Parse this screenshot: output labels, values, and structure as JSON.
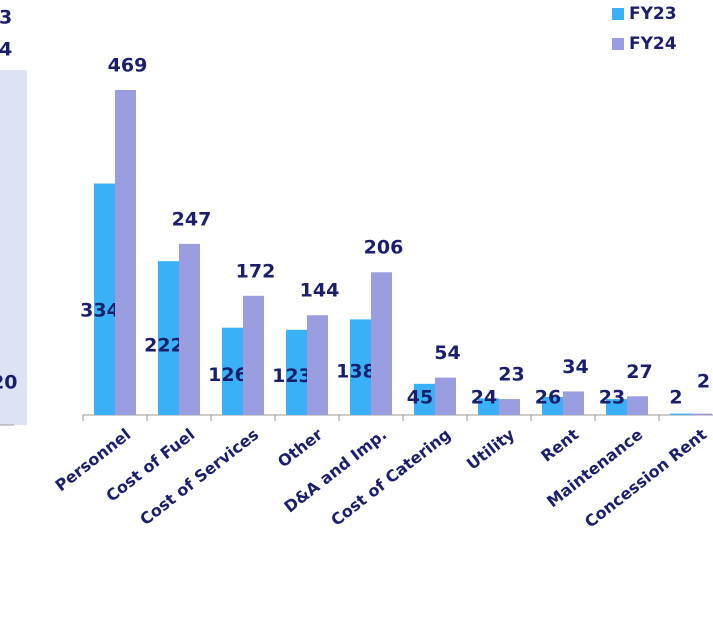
{
  "chart_data": {
    "type": "bar",
    "categories": [
      "Personnel",
      "Cost of Fuel",
      "Cost of Services",
      "Other",
      "D&A and Imp.",
      "Cost of Catering",
      "Utility",
      "Rent",
      "Maintenance",
      "Concession Rent"
    ],
    "series": [
      {
        "name": "FY23",
        "color": "#3ab1f7",
        "values": [
          334,
          222,
          126,
          123,
          138,
          45,
          24,
          26,
          23,
          2
        ]
      },
      {
        "name": "FY24",
        "color": "#9a9ee0",
        "values": [
          469,
          247,
          172,
          144,
          206,
          54,
          23,
          34,
          27,
          2
        ]
      }
    ],
    "legend": "top-right"
  },
  "left_panel": {
    "texts": [
      "3",
      "4",
      "20"
    ]
  }
}
